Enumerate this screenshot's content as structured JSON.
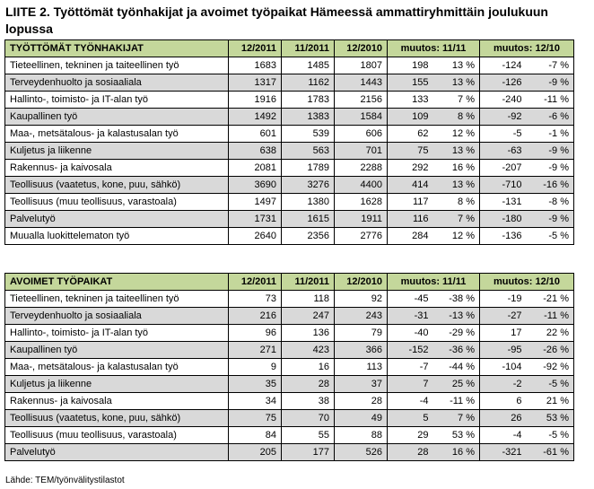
{
  "title": "LIITE 2. Työttömät työnhakijat ja avoimet työpaikat Hämeessä ammattiryhmittäin joulukuun lopussa",
  "columns": [
    "12/2011",
    "11/2011",
    "12/2010",
    "muutos: 11/11",
    "muutos: 12/10"
  ],
  "table1": {
    "heading": "TYÖTTÖMÄT TYÖNHAKIJAT",
    "rows": [
      {
        "label": "Tieteellinen, tekninen ja taiteellinen työ",
        "v1": "1683",
        "v2": "1485",
        "v3": "1807",
        "c1": "198",
        "p1": "13 %",
        "c2": "-124",
        "p2": "-7 %"
      },
      {
        "label": "Terveydenhuolto ja sosiaaliala",
        "v1": "1317",
        "v2": "1162",
        "v3": "1443",
        "c1": "155",
        "p1": "13 %",
        "c2": "-126",
        "p2": "-9 %"
      },
      {
        "label": "Hallinto-, toimisto- ja IT-alan työ",
        "v1": "1916",
        "v2": "1783",
        "v3": "2156",
        "c1": "133",
        "p1": "7 %",
        "c2": "-240",
        "p2": "-11 %"
      },
      {
        "label": "Kaupallinen työ",
        "v1": "1492",
        "v2": "1383",
        "v3": "1584",
        "c1": "109",
        "p1": "8 %",
        "c2": "-92",
        "p2": "-6 %"
      },
      {
        "label": "Maa-, metsätalous- ja kalastusalan työ",
        "v1": "601",
        "v2": "539",
        "v3": "606",
        "c1": "62",
        "p1": "12 %",
        "c2": "-5",
        "p2": "-1 %"
      },
      {
        "label": "Kuljetus ja liikenne",
        "v1": "638",
        "v2": "563",
        "v3": "701",
        "c1": "75",
        "p1": "13 %",
        "c2": "-63",
        "p2": "-9 %"
      },
      {
        "label": "Rakennus- ja kaivosala",
        "v1": "2081",
        "v2": "1789",
        "v3": "2288",
        "c1": "292",
        "p1": "16 %",
        "c2": "-207",
        "p2": "-9 %"
      },
      {
        "label": "Teollisuus (vaatetus, kone, puu, sähkö)",
        "v1": "3690",
        "v2": "3276",
        "v3": "4400",
        "c1": "414",
        "p1": "13 %",
        "c2": "-710",
        "p2": "-16 %"
      },
      {
        "label": "Teollisuus (muu teollisuus, varastoala)",
        "v1": "1497",
        "v2": "1380",
        "v3": "1628",
        "c1": "117",
        "p1": "8 %",
        "c2": "-131",
        "p2": "-8 %"
      },
      {
        "label": "Palvelutyö",
        "v1": "1731",
        "v2": "1615",
        "v3": "1911",
        "c1": "116",
        "p1": "7 %",
        "c2": "-180",
        "p2": "-9 %"
      },
      {
        "label": "Muualla luokittelematon työ",
        "v1": "2640",
        "v2": "2356",
        "v3": "2776",
        "c1": "284",
        "p1": "12 %",
        "c2": "-136",
        "p2": "-5 %"
      }
    ]
  },
  "table2": {
    "heading": "AVOIMET TYÖPAIKAT",
    "rows": [
      {
        "label": "Tieteellinen, tekninen ja taiteellinen työ",
        "v1": "73",
        "v2": "118",
        "v3": "92",
        "c1": "-45",
        "p1": "-38 %",
        "c2": "-19",
        "p2": "-21 %"
      },
      {
        "label": "Terveydenhuolto ja sosiaaliala",
        "v1": "216",
        "v2": "247",
        "v3": "243",
        "c1": "-31",
        "p1": "-13 %",
        "c2": "-27",
        "p2": "-11 %"
      },
      {
        "label": "Hallinto-, toimisto- ja IT-alan työ",
        "v1": "96",
        "v2": "136",
        "v3": "79",
        "c1": "-40",
        "p1": "-29 %",
        "c2": "17",
        "p2": "22 %"
      },
      {
        "label": "Kaupallinen työ",
        "v1": "271",
        "v2": "423",
        "v3": "366",
        "c1": "-152",
        "p1": "-36 %",
        "c2": "-95",
        "p2": "-26 %"
      },
      {
        "label": "Maa-, metsätalous- ja kalastusalan työ",
        "v1": "9",
        "v2": "16",
        "v3": "113",
        "c1": "-7",
        "p1": "-44 %",
        "c2": "-104",
        "p2": "-92 %"
      },
      {
        "label": "Kuljetus ja liikenne",
        "v1": "35",
        "v2": "28",
        "v3": "37",
        "c1": "7",
        "p1": "25 %",
        "c2": "-2",
        "p2": "-5 %"
      },
      {
        "label": "Rakennus- ja kaivosala",
        "v1": "34",
        "v2": "38",
        "v3": "28",
        "c1": "-4",
        "p1": "-11 %",
        "c2": "6",
        "p2": "21 %"
      },
      {
        "label": "Teollisuus (vaatetus, kone, puu, sähkö)",
        "v1": "75",
        "v2": "70",
        "v3": "49",
        "c1": "5",
        "p1": "7 %",
        "c2": "26",
        "p2": "53 %"
      },
      {
        "label": "Teollisuus (muu teollisuus, varastoala)",
        "v1": "84",
        "v2": "55",
        "v3": "88",
        "c1": "29",
        "p1": "53 %",
        "c2": "-4",
        "p2": "-5 %"
      },
      {
        "label": "Palvelutyö",
        "v1": "205",
        "v2": "177",
        "v3": "526",
        "c1": "28",
        "p1": "16 %",
        "c2": "-321",
        "p2": "-61 %"
      }
    ]
  },
  "source": "Lähde: TEM/työnvälitystilastot",
  "colors": {
    "header_bg": "#c4d79b",
    "shaded_row_bg": "#d9d9d9"
  }
}
